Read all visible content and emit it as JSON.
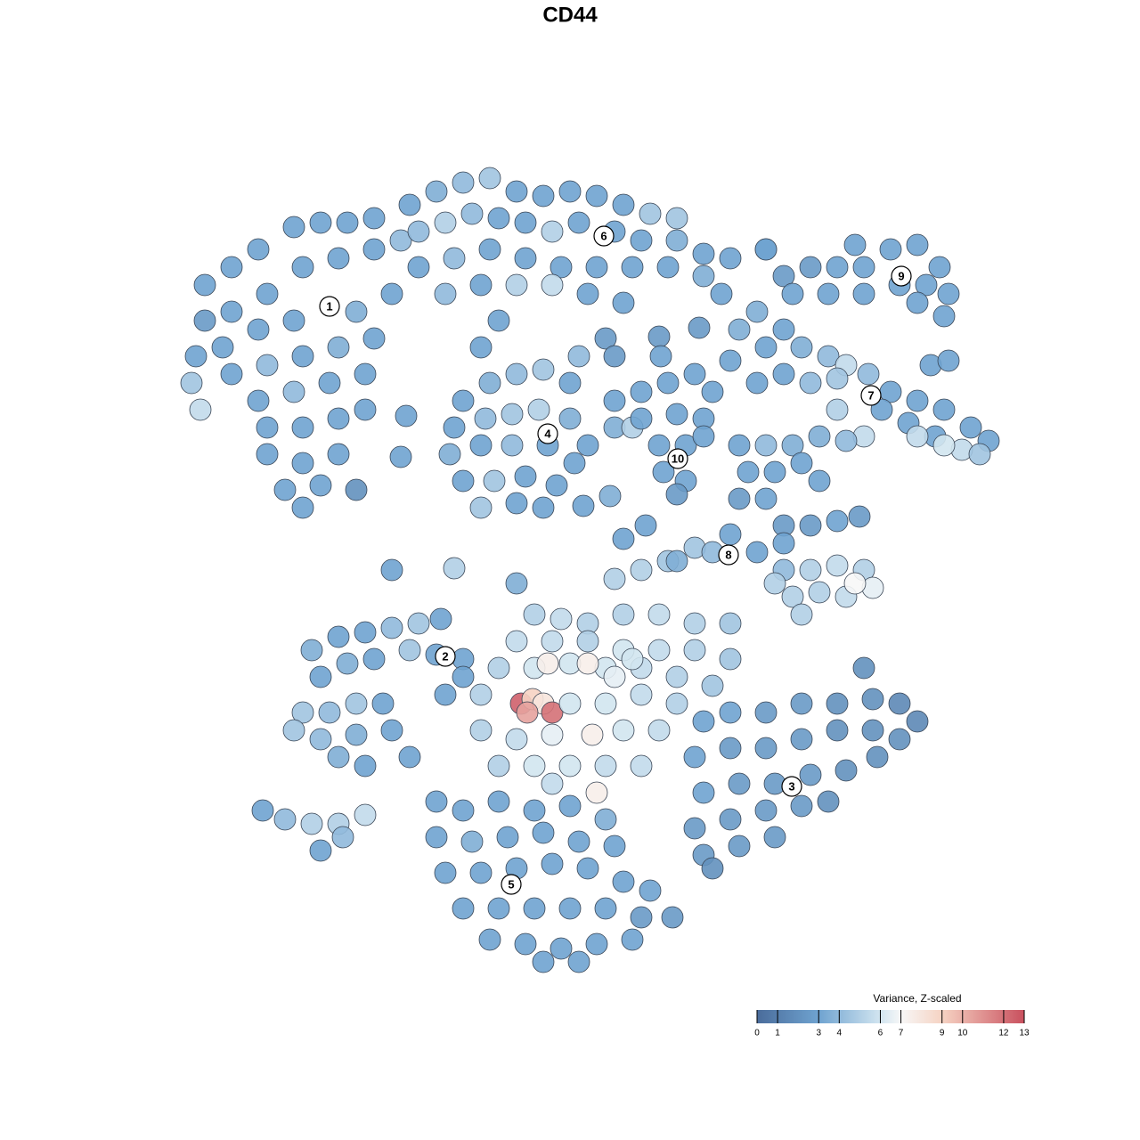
{
  "chart_data": {
    "type": "scatter",
    "title": "CD44",
    "xlim": [
      0,
      128
    ],
    "ylim": [
      128,
      0
    ],
    "series": [
      {
        "name": "1",
        "label_xy": [
          37.0,
          34.4
        ],
        "x": [
          23,
          26,
          29,
          33,
          36,
          39,
          42,
          23,
          26,
          30,
          34,
          38,
          42,
          45,
          22,
          25,
          29,
          33,
          40,
          44,
          21.5,
          26,
          30,
          34,
          38,
          42,
          22.5,
          29,
          33,
          37,
          41,
          30,
          34,
          38,
          41,
          30,
          34,
          38,
          32,
          36,
          40,
          34,
          45.6,
          45
        ],
        "y": [
          32,
          30,
          28,
          25.5,
          25,
          25,
          24.5,
          36,
          35,
          33,
          30,
          29,
          28,
          27,
          40,
          39,
          37,
          36,
          35,
          33,
          43,
          42,
          41,
          40,
          39,
          38,
          46,
          45,
          44,
          43,
          42,
          48,
          48,
          47,
          46,
          51,
          52,
          51,
          55,
          54.5,
          55,
          57,
          46.7,
          51.3
        ],
        "values": [
          3,
          3,
          3,
          3,
          3,
          3,
          3,
          2.5,
          3,
          3,
          3,
          3,
          3,
          4,
          3,
          3,
          3,
          3,
          3.5,
          3,
          4.5,
          3,
          4,
          3,
          3.5,
          3,
          5.5,
          3,
          4,
          3,
          3,
          3,
          3,
          3,
          3,
          3,
          3,
          3,
          3,
          3,
          2,
          3,
          3,
          3
        ]
      },
      {
        "name": "2",
        "label_xy": [
          50.0,
          73.7
        ],
        "x": [
          35,
          38,
          41,
          44,
          47,
          49.5,
          36,
          39,
          42,
          46,
          49,
          52,
          34,
          37,
          40,
          43,
          33,
          36,
          40,
          44,
          41,
          46,
          50,
          52,
          38,
          29.5,
          32,
          35,
          38,
          41,
          36,
          38.5,
          44,
          51,
          58,
          60,
          63,
          66,
          70,
          74,
          78,
          82,
          58,
          62,
          66,
          70,
          74,
          78,
          82,
          56,
          60,
          64,
          68,
          72,
          76,
          80,
          54,
          58.5,
          59.8,
          61,
          62,
          59.2,
          64,
          68,
          72,
          76,
          54,
          58,
          62,
          66.5,
          70,
          74,
          56,
          60,
          64,
          68,
          72,
          67,
          62,
          61.5,
          66,
          69,
          71,
          69,
          72,
          75
        ],
        "y": [
          73,
          71.5,
          71,
          70.5,
          70,
          69.5,
          76,
          74.5,
          74,
          73,
          73.5,
          74,
          80,
          80,
          79,
          79,
          82,
          83,
          82.5,
          82,
          86,
          85,
          78,
          76,
          85,
          91,
          92,
          92.5,
          92.5,
          91.5,
          95.5,
          94,
          64,
          63.8,
          65.5,
          69,
          69.5,
          70,
          69,
          69,
          70,
          70,
          72,
          72,
          72,
          73,
          73,
          73,
          74,
          75,
          75,
          74.5,
          75,
          75,
          76,
          77,
          78,
          79,
          78.5,
          79,
          80,
          80,
          79,
          79,
          78,
          79,
          82,
          83,
          82.5,
          82.5,
          82,
          82,
          86,
          86,
          86,
          86,
          86,
          89,
          88,
          74.5,
          74.5,
          76,
          74,
          65,
          64,
          63
        ],
        "values": [
          3.5,
          3,
          3,
          4,
          4.5,
          3,
          3,
          3.5,
          3,
          4.5,
          3,
          3,
          4.5,
          4,
          4.5,
          3,
          4.5,
          4,
          3.5,
          3,
          3,
          3,
          3,
          3,
          3.5,
          3,
          4,
          5,
          5,
          5.5,
          3,
          4,
          3,
          5,
          3.5,
          5,
          5.5,
          5,
          5,
          5.5,
          5,
          4.5,
          5.5,
          5.5,
          5,
          6,
          5.5,
          5,
          4.5,
          5,
          6,
          6,
          6,
          5.5,
          5,
          4.5,
          5,
          12.5,
          9,
          8,
          12,
          10.5,
          6,
          6,
          5.5,
          5,
          5,
          5.5,
          6.5,
          7.5,
          6,
          5.5,
          5,
          6,
          6,
          5.5,
          5.5,
          7.5,
          5.5,
          7.5,
          7.5,
          6.5,
          6,
          5,
          5,
          4.5
        ]
      },
      {
        "name": "3",
        "label_xy": [
          88.9,
          88.3
        ],
        "x": [
          79,
          82,
          86,
          90,
          94,
          98,
          101,
          103,
          78,
          82,
          86,
          90,
          94,
          98,
          101,
          79,
          83,
          87,
          91,
          95,
          98.5,
          78,
          82,
          86,
          90,
          93,
          79,
          83,
          87,
          80,
          97
        ],
        "y": [
          81,
          80,
          80,
          79,
          79,
          78.5,
          79,
          81,
          85,
          84,
          84,
          83,
          82,
          82,
          83,
          89,
          88,
          88,
          87,
          86.5,
          85,
          93,
          92,
          91,
          90.5,
          90,
          96,
          95,
          94,
          97.5,
          75
        ],
        "values": [
          3,
          3,
          2.5,
          2.5,
          2,
          2,
          1.5,
          1.5,
          3,
          2.5,
          2.5,
          2.5,
          2,
          2,
          2,
          3,
          2.5,
          2.5,
          2.5,
          2,
          2,
          2.5,
          2.5,
          2.5,
          2.5,
          2,
          2.5,
          2.5,
          2.5,
          2,
          2
        ]
      },
      {
        "name": "4",
        "label_xy": [
          61.5,
          48.7
        ],
        "x": [
          52,
          55,
          58,
          61,
          64,
          51,
          54.5,
          57.5,
          60.5,
          64,
          66,
          50.5,
          54,
          57.5,
          61.5,
          64.5,
          52,
          55.5,
          59,
          62.5,
          54,
          58,
          61,
          65.5,
          68.5
        ],
        "y": [
          45,
          43,
          42,
          41.5,
          43,
          48,
          47,
          46.5,
          46,
          47,
          50,
          51,
          50,
          50,
          50,
          52,
          54,
          54,
          53.5,
          54.5,
          57,
          56.5,
          57,
          56.8,
          55.7
        ],
        "values": [
          3,
          3.5,
          4,
          4.5,
          3,
          3,
          4,
          4.5,
          5,
          3.5,
          3,
          3.5,
          3,
          4,
          3,
          3,
          3,
          4.5,
          3,
          3,
          4.5,
          3,
          3,
          3,
          3.5
        ]
      },
      {
        "name": "5",
        "label_xy": [
          57.4,
          99.3
        ],
        "x": [
          49,
          52,
          56,
          60,
          64,
          68,
          49,
          53,
          57,
          61,
          65,
          69,
          50,
          54,
          58,
          62,
          66,
          70,
          73,
          52,
          56,
          60,
          64,
          68,
          72,
          75.5,
          55,
          59,
          63,
          67,
          71,
          61,
          65
        ],
        "y": [
          90,
          91,
          90,
          91,
          90.5,
          92,
          94,
          94.5,
          94,
          93.5,
          94.5,
          95,
          98,
          98,
          97.5,
          97,
          97.5,
          99,
          100,
          102,
          102,
          102,
          102,
          102,
          103,
          103,
          105.5,
          106,
          106.5,
          106,
          105.5,
          108,
          108
        ],
        "values": [
          3,
          3,
          3,
          3,
          3,
          3.5,
          3,
          3.5,
          3,
          3,
          3,
          3,
          3,
          3,
          3,
          3,
          3,
          3,
          3,
          3,
          3,
          3,
          3,
          3,
          2.5,
          2.5,
          3,
          3,
          3,
          3,
          3,
          3,
          3
        ]
      },
      {
        "name": "6",
        "label_xy": [
          67.8,
          26.5
        ],
        "x": [
          46,
          49,
          52,
          55,
          58,
          61,
          64,
          67,
          70,
          73,
          76,
          47,
          50,
          53,
          56,
          59,
          62,
          65,
          69,
          72,
          76,
          79,
          82,
          47,
          51,
          55,
          59,
          63,
          67,
          71,
          75,
          79,
          81,
          50,
          54,
          58,
          62,
          66,
          70,
          68,
          69,
          65,
          56,
          54,
          86
        ],
        "y": [
          23,
          21.5,
          20.5,
          20,
          21.5,
          22,
          21.5,
          22,
          23,
          24,
          24.5,
          26,
          25,
          24,
          24.5,
          25,
          26,
          25,
          26,
          27,
          27,
          28.5,
          29,
          30,
          29,
          28,
          29,
          30,
          30,
          30,
          30,
          31,
          33,
          33,
          32,
          32,
          32,
          33,
          34,
          38,
          40,
          40,
          36,
          39,
          28
        ],
        "values": [
          3,
          3.5,
          4,
          4.5,
          3,
          3,
          3,
          3,
          3,
          4.5,
          4.5,
          4,
          5,
          4,
          3,
          3,
          5,
          3,
          3,
          3,
          3.5,
          3,
          3,
          3,
          4,
          3,
          3,
          3,
          3,
          3,
          3,
          3.5,
          3,
          4,
          3,
          5,
          5.5,
          3,
          3,
          2.5,
          2.5,
          4,
          3,
          3,
          3
        ]
      },
      {
        "name": "7",
        "label_xy": [
          97.8,
          44.4
        ],
        "x": [
          86,
          88,
          90,
          93,
          95,
          97.5,
          100,
          103,
          106,
          109,
          111,
          85,
          88,
          91,
          94,
          99,
          102,
          105,
          108,
          110,
          94,
          97,
          103,
          106,
          83,
          85
        ],
        "y": [
          39,
          37,
          39,
          40,
          41,
          42,
          44,
          45,
          46,
          48,
          49.5,
          43,
          42,
          43,
          42.5,
          46,
          47.5,
          49,
          50.5,
          51,
          46,
          49,
          49,
          50,
          37,
          35
        ],
        "values": [
          3,
          3,
          3.5,
          4,
          5.5,
          4,
          3,
          3,
          3,
          3,
          3,
          3,
          3,
          4,
          4.5,
          3,
          3,
          3,
          5.5,
          4.5,
          5,
          5.5,
          5.5,
          6,
          3.5,
          3.5
        ]
      },
      {
        "name": "8",
        "label_xy": [
          81.8,
          62.3
        ],
        "x": [
          83,
          86,
          89,
          92,
          95,
          84,
          87,
          90,
          92,
          83,
          86,
          88,
          91,
          94,
          96.5,
          82,
          85,
          88,
          78,
          76,
          80,
          88,
          91,
          94,
          97,
          89,
          92,
          95,
          98,
          90,
          96,
          87,
          70,
          72.5
        ],
        "y": [
          50,
          50,
          50,
          49,
          49.5,
          53,
          53,
          52,
          54,
          56,
          56,
          59,
          59,
          58.5,
          58,
          60,
          62,
          61,
          61.5,
          63,
          62,
          64,
          64,
          63.5,
          64,
          67,
          66.5,
          67,
          66,
          69,
          65.5,
          65.5,
          60.5,
          59
        ],
        "values": [
          3,
          4,
          3.5,
          3.5,
          4,
          3,
          3,
          3,
          3,
          2.5,
          3,
          2.5,
          2.5,
          3,
          2.5,
          3,
          3,
          3,
          4.5,
          3.5,
          4,
          4,
          5,
          5.5,
          5,
          5,
          5,
          5.5,
          6.5,
          5,
          7,
          5,
          3,
          3
        ]
      },
      {
        "name": "9",
        "label_xy": [
          101.2,
          31.0
        ],
        "x": [
          88,
          91,
          94,
          97,
          100,
          103,
          105.5,
          106.5,
          89,
          93,
          97,
          101,
          104,
          106,
          103,
          96,
          86,
          104.5,
          106.5
        ],
        "y": [
          31,
          30,
          30,
          30,
          28,
          27.5,
          30,
          33,
          33,
          33,
          33,
          32,
          32,
          35.5,
          34,
          27.5,
          28,
          41,
          40.5
        ],
        "values": [
          2.5,
          2.5,
          3,
          3,
          3,
          3,
          3,
          3,
          3,
          3,
          3,
          3,
          3,
          3,
          3,
          3,
          3,
          3,
          3
        ]
      },
      {
        "name": "10",
        "label_xy": [
          76.1,
          51.5
        ],
        "x": [
          69,
          72,
          75,
          78,
          80,
          69,
          71,
          72,
          76,
          79,
          74,
          77,
          79,
          74.5,
          77,
          76,
          74,
          78.5,
          74.2,
          82
        ],
        "y": [
          45,
          44,
          43,
          42,
          44,
          48,
          48,
          47,
          46.5,
          47,
          50,
          50,
          49,
          53,
          54,
          55.5,
          37.8,
          36.8,
          40,
          40.5
        ],
        "values": [
          3,
          3,
          3,
          3,
          3,
          3.5,
          5,
          3,
          3,
          3,
          3,
          3,
          3,
          3,
          3,
          2.5,
          2.5,
          2.5,
          3,
          3
        ]
      }
    ],
    "colorbar": {
      "title": "Variance, Z-scaled",
      "lim": [
        0,
        13
      ],
      "ticks": [
        0,
        1,
        3,
        4,
        6,
        7,
        9,
        10,
        12,
        13
      ],
      "colorscale": [
        [
          0,
          "#4a6c9b"
        ],
        [
          3,
          "#6fa3d0"
        ],
        [
          6,
          "#d2e5f0"
        ],
        [
          7,
          "#f7f7f7"
        ],
        [
          9,
          "#f6d3c3"
        ],
        [
          13,
          "#c9505e"
        ]
      ]
    }
  }
}
